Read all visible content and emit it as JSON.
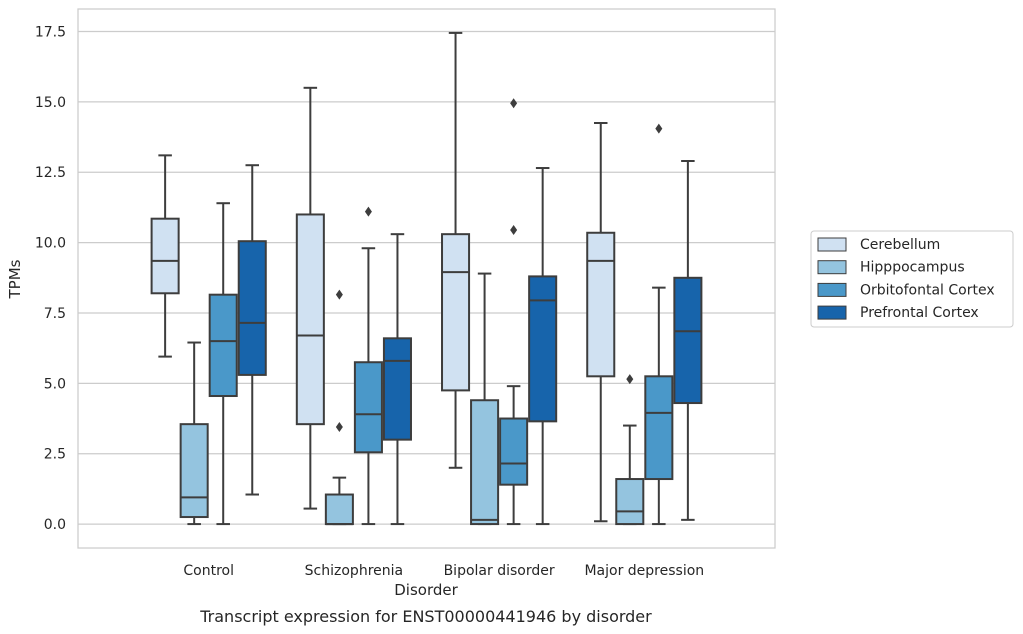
{
  "chart_data": {
    "type": "box",
    "caption": "Transcript expression for ENST00000441946 by disorder",
    "xlabel": "Disorder",
    "ylabel": "TPMs",
    "ylim": [
      -0.85,
      18.3
    ],
    "yticks": [
      "0.0",
      "2.5",
      "5.0",
      "7.5",
      "10.0",
      "12.5",
      "15.0",
      "17.5"
    ],
    "grid": true,
    "legend_position": "right",
    "categories": [
      "Control",
      "Schizophrenia",
      "Bipolar disorder",
      "Major depression"
    ],
    "series": [
      {
        "name": "Cerebellum",
        "color": "#d0e1f2",
        "boxes": [
          {
            "whisker_low": 5.95,
            "q1": 8.2,
            "median": 9.35,
            "q3": 10.85,
            "whisker_high": 13.1,
            "outliers": []
          },
          {
            "whisker_low": 0.55,
            "q1": 3.55,
            "median": 6.7,
            "q3": 11.0,
            "whisker_high": 15.5,
            "outliers": []
          },
          {
            "whisker_low": 2.0,
            "q1": 4.75,
            "median": 8.95,
            "q3": 10.3,
            "whisker_high": 17.45,
            "outliers": []
          },
          {
            "whisker_low": 0.1,
            "q1": 5.25,
            "median": 9.35,
            "q3": 10.35,
            "whisker_high": 14.25,
            "outliers": []
          }
        ]
      },
      {
        "name": "Hipppocampus",
        "color": "#94c4df",
        "boxes": [
          {
            "whisker_low": 0.0,
            "q1": 0.25,
            "median": 0.95,
            "q3": 3.55,
            "whisker_high": 6.45,
            "outliers": []
          },
          {
            "whisker_low": 0.0,
            "q1": 0.0,
            "median": 0.0,
            "q3": 1.05,
            "whisker_high": 1.65,
            "outliers": [
              3.45,
              8.15
            ]
          },
          {
            "whisker_low": 0.0,
            "q1": 0.0,
            "median": 0.15,
            "q3": 4.4,
            "whisker_high": 8.9,
            "outliers": []
          },
          {
            "whisker_low": 0.0,
            "q1": 0.0,
            "median": 0.45,
            "q3": 1.6,
            "whisker_high": 3.5,
            "outliers": [
              5.15
            ]
          }
        ]
      },
      {
        "name": "Orbitofontal Cortex",
        "color": "#4a98c9",
        "boxes": [
          {
            "whisker_low": 0.0,
            "q1": 4.55,
            "median": 6.5,
            "q3": 8.15,
            "whisker_high": 11.4,
            "outliers": []
          },
          {
            "whisker_low": 0.0,
            "q1": 2.55,
            "median": 3.9,
            "q3": 5.75,
            "whisker_high": 9.8,
            "outliers": [
              11.1
            ]
          },
          {
            "whisker_low": 0.0,
            "q1": 1.4,
            "median": 2.15,
            "q3": 3.75,
            "whisker_high": 4.9,
            "outliers": [
              10.45,
              14.95
            ]
          },
          {
            "whisker_low": 0.0,
            "q1": 1.6,
            "median": 3.95,
            "q3": 5.25,
            "whisker_high": 8.4,
            "outliers": [
              14.05
            ]
          }
        ]
      },
      {
        "name": "Prefrontal Cortex",
        "color": "#1764ab",
        "boxes": [
          {
            "whisker_low": 1.05,
            "q1": 5.3,
            "median": 7.15,
            "q3": 10.05,
            "whisker_high": 12.75,
            "outliers": []
          },
          {
            "whisker_low": 0.0,
            "q1": 3.0,
            "median": 5.8,
            "q3": 6.6,
            "whisker_high": 10.3,
            "outliers": []
          },
          {
            "whisker_low": 0.0,
            "q1": 3.65,
            "median": 7.95,
            "q3": 8.8,
            "whisker_high": 12.65,
            "outliers": []
          },
          {
            "whisker_low": 0.15,
            "q1": 4.3,
            "median": 6.85,
            "q3": 8.75,
            "whisker_high": 12.9,
            "outliers": []
          }
        ]
      }
    ]
  }
}
